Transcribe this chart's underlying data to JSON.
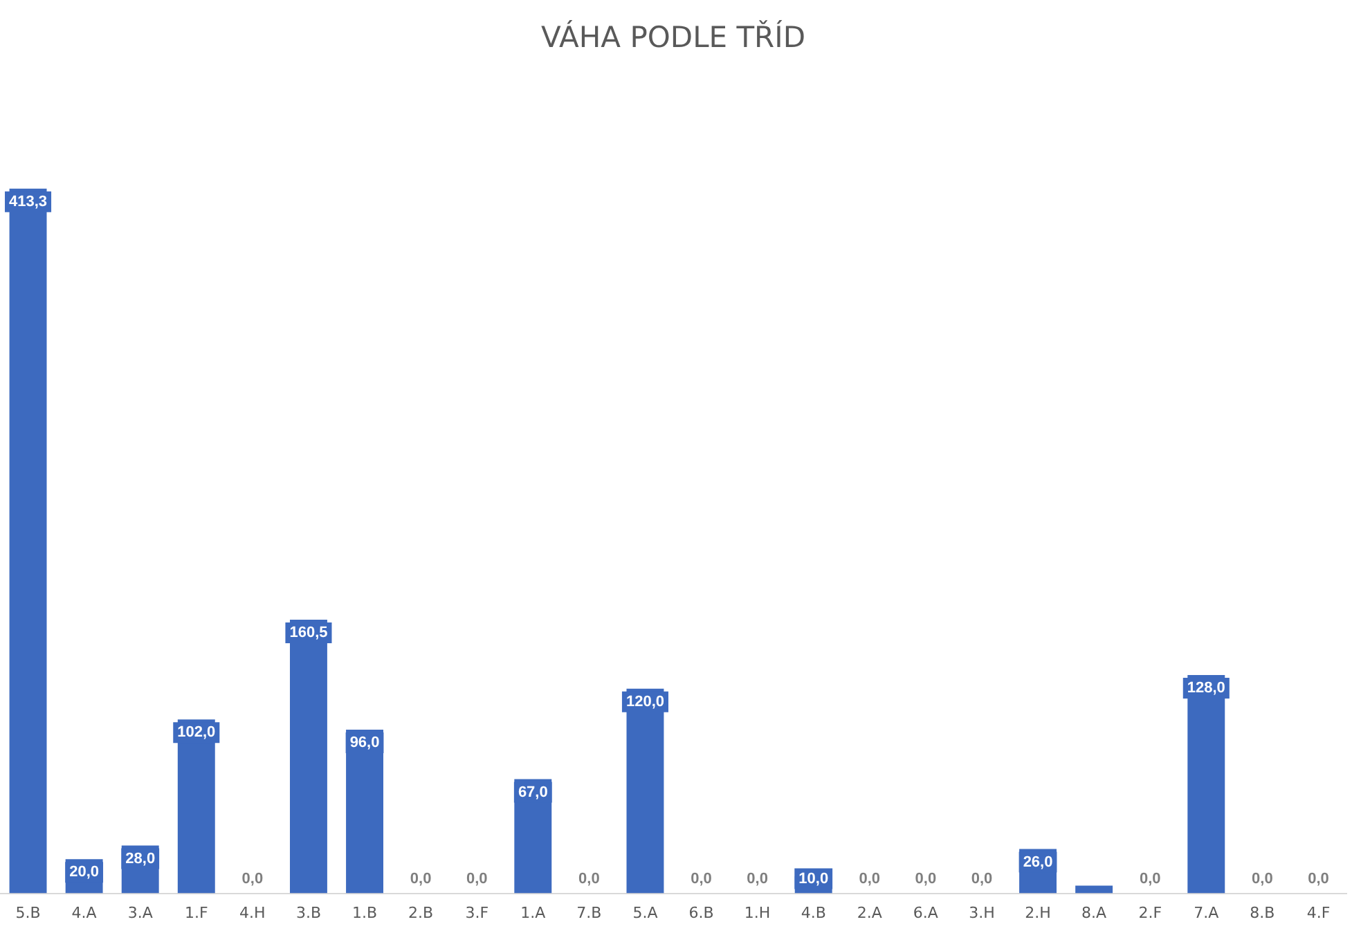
{
  "chart_data": {
    "type": "bar",
    "title": "VÁHA PODLE TŘÍD",
    "categories": [
      "5.B",
      "4.A",
      "3.A",
      "1.F",
      "4.H",
      "3.B",
      "1.B",
      "2.B",
      "3.F",
      "1.A",
      "7.B",
      "5.A",
      "6.B",
      "1.H",
      "4.B",
      "2.A",
      "6.A",
      "3.H",
      "2.H",
      "8.A",
      "2.F",
      "7.A",
      "8.B",
      "4.F"
    ],
    "values": [
      413.3,
      20,
      28,
      102,
      0,
      160.5,
      96,
      0,
      0,
      67,
      0,
      120,
      0,
      0,
      10,
      0,
      0,
      0,
      26,
      4.5,
      0,
      128,
      0,
      0
    ],
    "value_labels": [
      "413,3",
      "20,0",
      "28,0",
      "102,0",
      "0,0",
      "160,5",
      "96,0",
      "0,0",
      "0,0",
      "67,0",
      "0,0",
      "120,0",
      "0,0",
      "0,0",
      "10,0",
      "0,0",
      "0,0",
      "0,0",
      "26,0",
      null,
      "0,0",
      "128,0",
      "0,0",
      "0,0"
    ],
    "color": "#3d6abf",
    "grid": false,
    "legend": false
  }
}
